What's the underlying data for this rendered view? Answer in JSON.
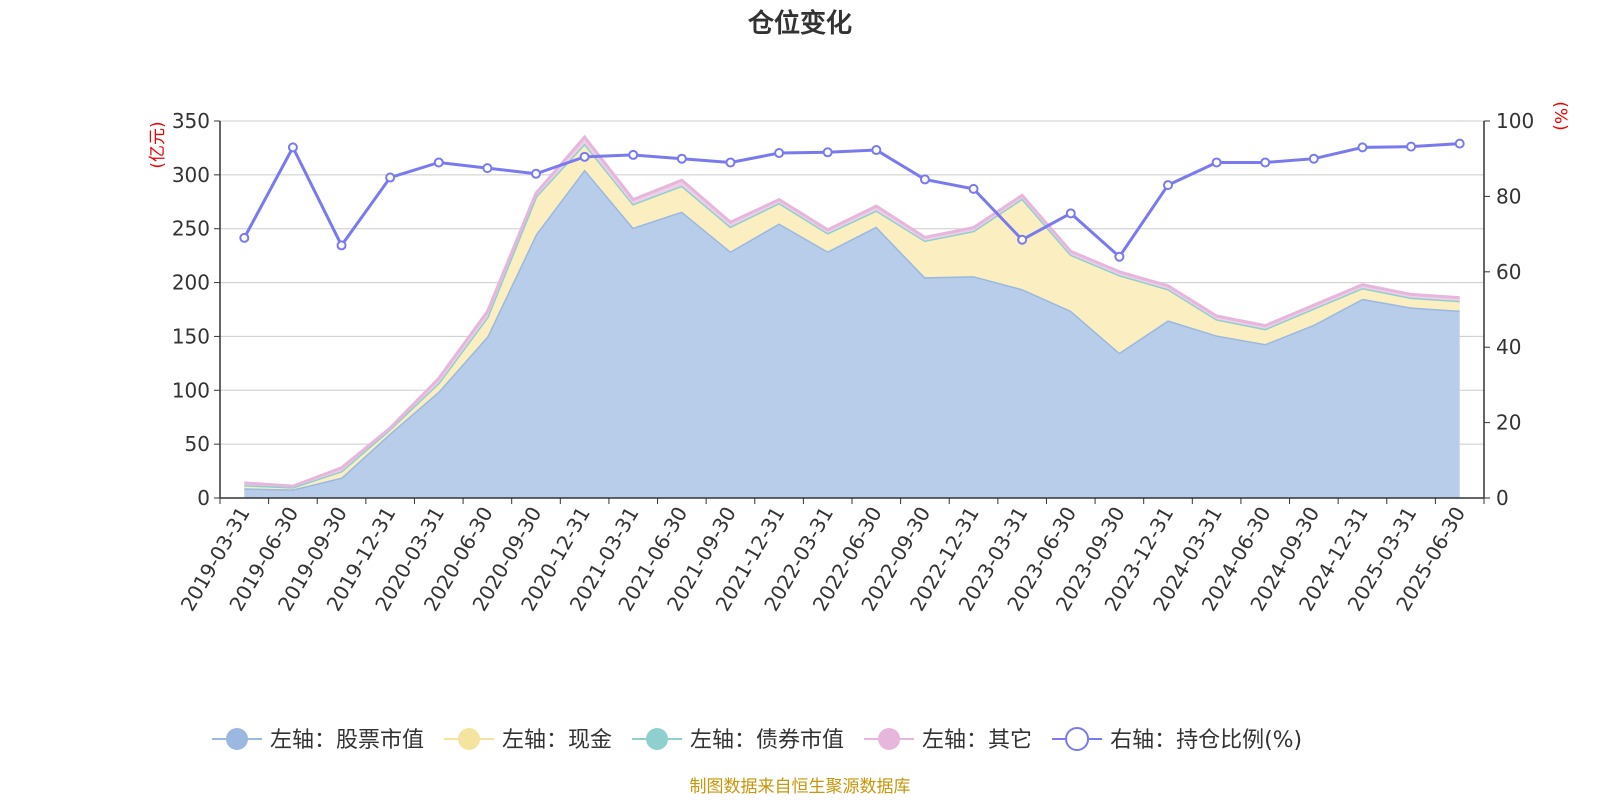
{
  "chart_data": {
    "type": "area",
    "title": "仓位变化",
    "left_axis_unit": "(亿元)",
    "right_axis_unit": "(%)",
    "left_ylim": [
      0,
      350
    ],
    "left_yticks": [
      0,
      50,
      100,
      150,
      200,
      250,
      300,
      350
    ],
    "right_ylim": [
      0,
      100
    ],
    "right_yticks": [
      0,
      20,
      40,
      60,
      80,
      100
    ],
    "grid": true,
    "legend_position": "bottom",
    "categories": [
      "2019-03-31",
      "2019-06-30",
      "2019-09-30",
      "2019-12-31",
      "2020-03-31",
      "2020-06-30",
      "2020-09-30",
      "2020-12-31",
      "2021-03-31",
      "2021-06-30",
      "2021-09-30",
      "2021-12-31",
      "2022-03-31",
      "2022-06-30",
      "2022-09-30",
      "2022-12-31",
      "2023-03-31",
      "2023-06-30",
      "2023-09-30",
      "2023-12-31",
      "2024-03-31",
      "2024-06-30",
      "2024-09-30",
      "2024-12-31",
      "2025-03-31",
      "2025-06-30"
    ],
    "series": [
      {
        "name": "左轴：股票市值",
        "axis": "left",
        "stack": true,
        "color": "#9ab8e0",
        "fill": "#b8cdea",
        "values": [
          9,
          8,
          19,
          60,
          99,
          150,
          245,
          305,
          251,
          266,
          229,
          255,
          229,
          252,
          205,
          206,
          194,
          174,
          135,
          165,
          151,
          143,
          161,
          185,
          177,
          174
        ]
      },
      {
        "name": "左轴：现金",
        "axis": "left",
        "stack": true,
        "color": "#f5e4a0",
        "fill": "#fbefc2",
        "values": [
          3,
          2,
          6,
          4,
          8,
          18,
          35,
          24,
          22,
          24,
          23,
          19,
          17,
          15,
          34,
          42,
          84,
          52,
          72,
          29,
          15,
          14,
          15,
          10,
          9,
          9
        ]
      },
      {
        "name": "左轴：债券市值",
        "axis": "left",
        "stack": true,
        "color": "#8fd0cf",
        "fill": "#b5e2e0",
        "values": [
          0,
          0,
          0,
          0,
          0,
          0,
          0,
          0,
          0,
          0,
          0,
          0,
          0,
          0,
          0,
          0,
          0,
          0,
          0,
          0,
          0,
          0,
          0,
          0,
          0,
          0
        ]
      },
      {
        "name": "左轴：其它",
        "axis": "left",
        "stack": true,
        "color": "#e6b6dc",
        "fill": "#efcfe8",
        "values": [
          2,
          1,
          3,
          1,
          4,
          5,
          3,
          6,
          4,
          5,
          4,
          3,
          3,
          4,
          3,
          3,
          3,
          3,
          3,
          3,
          3,
          3,
          3,
          3,
          3,
          3
        ]
      },
      {
        "name": "右轴：持仓比例(%)",
        "axis": "right",
        "stack": false,
        "color": "#7a7af0",
        "values": [
          69,
          93,
          67,
          85,
          89,
          87.5,
          86,
          90.5,
          91,
          90,
          89,
          91.5,
          91.7,
          92.3,
          84.5,
          82,
          68.5,
          75.5,
          64,
          83,
          89,
          89,
          90,
          93,
          93.2,
          94
        ]
      }
    ]
  },
  "source_note": "制图数据来自恒生聚源数据库"
}
